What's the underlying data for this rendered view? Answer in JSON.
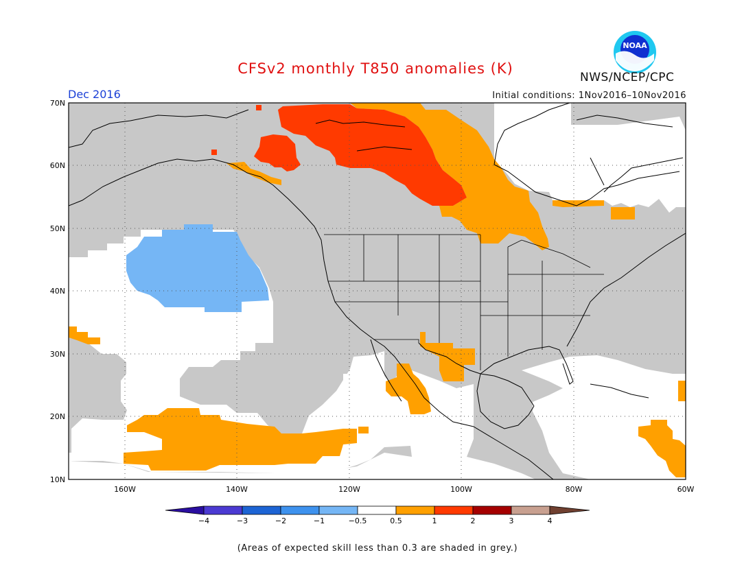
{
  "header": {
    "title": "CFSv2 monthly T850 anomalies (K)",
    "org": "NWS/NCEP/CPC",
    "logo_text": "NOAA",
    "month": "Dec 2016",
    "initial_conditions": "Initial conditions: 1Nov2016–10Nov2016"
  },
  "map": {
    "lat_labels": [
      "70N",
      "60N",
      "50N",
      "40N",
      "30N",
      "20N",
      "10N"
    ],
    "lon_labels": [
      "160W",
      "140W",
      "120W",
      "100W",
      "80W",
      "60W"
    ],
    "lon_range": [
      -170,
      -60
    ],
    "lat_range": [
      10,
      70
    ],
    "masked_color": "#c8c8c8"
  },
  "legend": {
    "labels": [
      "−4",
      "−3",
      "−2",
      "−1",
      "−0.5",
      "0.5",
      "1",
      "2",
      "3",
      "4"
    ],
    "colors": [
      "#2a0ea0",
      "#4b3ad2",
      "#1d64d4",
      "#3e92ee",
      "#75b6f5",
      "#ffffff",
      "#ffa000",
      "#ff3a00",
      "#a50000",
      "#c8a090",
      "#704030"
    ]
  },
  "footnote": "(Areas of expected skill less than 0.3 are shaded in grey.)",
  "colors": {
    "title": "#e01010",
    "month": "#1a3fd6",
    "grey_mask": "#c8c8c8",
    "orange": "#ffa000",
    "red": "#ff3a00",
    "light_blue": "#75b6f5"
  }
}
